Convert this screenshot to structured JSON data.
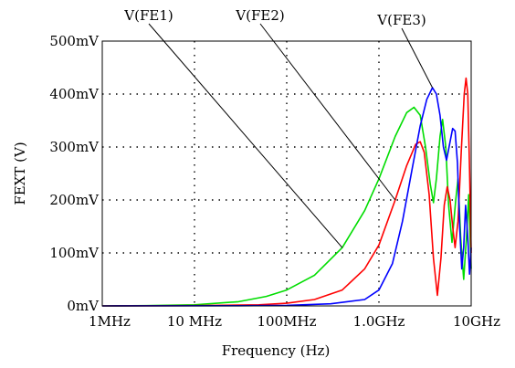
{
  "chart_data": {
    "type": "line",
    "xlabel": "Frequency (Hz)",
    "ylabel": "FEXT (V)",
    "x_scale": "log",
    "xlim_hz": [
      1000000,
      10000000000
    ],
    "ylim_mv": [
      0,
      500
    ],
    "grid": "dotted",
    "x_ticks": [
      {
        "value": 1000000,
        "label": "1MHz"
      },
      {
        "value": 10000000,
        "label": "10 MHz"
      },
      {
        "value": 100000000,
        "label": "100MHz"
      },
      {
        "value": 1000000000,
        "label": "1.0GHz"
      },
      {
        "value": 10000000000,
        "label": "10GHz"
      }
    ],
    "y_ticks": [
      {
        "value": 0,
        "label": "0mV"
      },
      {
        "value": 100,
        "label": "100mV"
      },
      {
        "value": 200,
        "label": "200mV"
      },
      {
        "value": 300,
        "label": "300mV"
      },
      {
        "value": 400,
        "label": "400mV"
      },
      {
        "value": 500,
        "label": "500mV"
      }
    ],
    "series": [
      {
        "name": "V(FE1)",
        "color": "#00dd00",
        "points": [
          [
            1000000,
            0
          ],
          [
            3000000,
            0.5
          ],
          [
            10000000,
            2
          ],
          [
            30000000,
            8
          ],
          [
            60000000,
            18
          ],
          [
            100000000,
            30
          ],
          [
            200000000,
            58
          ],
          [
            400000000,
            110
          ],
          [
            700000000,
            180
          ],
          [
            1000000000,
            240
          ],
          [
            1500000000,
            320
          ],
          [
            2000000000,
            365
          ],
          [
            2400000000,
            375
          ],
          [
            2800000000,
            360
          ],
          [
            3200000000,
            300
          ],
          [
            3600000000,
            230
          ],
          [
            3900000000,
            195
          ],
          [
            4200000000,
            240
          ],
          [
            4600000000,
            320
          ],
          [
            4900000000,
            352
          ],
          [
            5300000000,
            300
          ],
          [
            5700000000,
            190
          ],
          [
            6200000000,
            120
          ],
          [
            6800000000,
            200
          ],
          [
            7200000000,
            240
          ],
          [
            7700000000,
            130
          ],
          [
            8300000000,
            50
          ],
          [
            8900000000,
            130
          ],
          [
            9400000000,
            210
          ],
          [
            10000000000,
            70
          ]
        ]
      },
      {
        "name": "V(FE2)",
        "color": "#ff0000",
        "points": [
          [
            1000000,
            0
          ],
          [
            10000000,
            0.5
          ],
          [
            50000000,
            2
          ],
          [
            100000000,
            5
          ],
          [
            200000000,
            12
          ],
          [
            400000000,
            30
          ],
          [
            700000000,
            70
          ],
          [
            1000000000,
            115
          ],
          [
            1500000000,
            200
          ],
          [
            2000000000,
            265
          ],
          [
            2500000000,
            305
          ],
          [
            2800000000,
            310
          ],
          [
            3100000000,
            290
          ],
          [
            3500000000,
            210
          ],
          [
            3900000000,
            90
          ],
          [
            4300000000,
            20
          ],
          [
            4700000000,
            90
          ],
          [
            5100000000,
            190
          ],
          [
            5500000000,
            225
          ],
          [
            5900000000,
            200
          ],
          [
            6300000000,
            150
          ],
          [
            6700000000,
            110
          ],
          [
            7200000000,
            160
          ],
          [
            7800000000,
            290
          ],
          [
            8400000000,
            400
          ],
          [
            8800000000,
            430
          ],
          [
            9200000000,
            400
          ],
          [
            9600000000,
            260
          ],
          [
            10000000000,
            100
          ]
        ]
      },
      {
        "name": "V(FE3)",
        "color": "#0000ff",
        "points": [
          [
            1000000,
            0
          ],
          [
            30000000,
            0.3
          ],
          [
            100000000,
            1
          ],
          [
            300000000,
            4
          ],
          [
            700000000,
            12
          ],
          [
            1000000000,
            30
          ],
          [
            1400000000,
            80
          ],
          [
            1800000000,
            160
          ],
          [
            2300000000,
            260
          ],
          [
            2800000000,
            340
          ],
          [
            3300000000,
            390
          ],
          [
            3800000000,
            412
          ],
          [
            4200000000,
            400
          ],
          [
            4600000000,
            360
          ],
          [
            5000000000,
            300
          ],
          [
            5400000000,
            275
          ],
          [
            5900000000,
            310
          ],
          [
            6300000000,
            335
          ],
          [
            6700000000,
            330
          ],
          [
            7100000000,
            270
          ],
          [
            7500000000,
            150
          ],
          [
            7900000000,
            70
          ],
          [
            8300000000,
            110
          ],
          [
            8700000000,
            190
          ],
          [
            9200000000,
            130
          ],
          [
            9600000000,
            60
          ],
          [
            10000000000,
            110
          ]
        ]
      }
    ]
  }
}
